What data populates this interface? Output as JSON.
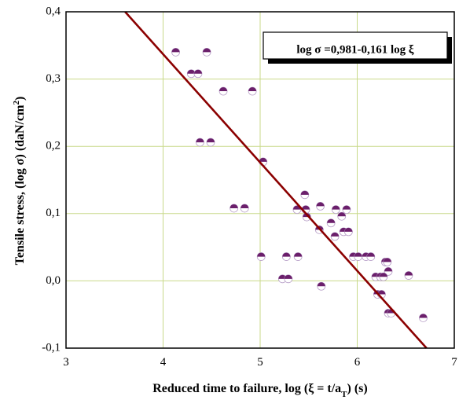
{
  "chart_data": {
    "type": "scatter",
    "xlabel": "Reduced time to failure,  log (ξ = t/a",
    "xlabel_sub": "T",
    "xlabel_end": ")  (s)",
    "ylabel": "Tensile stress,  (log  σ)   (daN/cm",
    "ylabel_sup": "2",
    "ylabel_end": ")",
    "xlim": [
      3,
      7
    ],
    "ylim": [
      -0.1,
      0.4
    ],
    "x_ticks": [
      3,
      4,
      5,
      6,
      7
    ],
    "y_ticks": [
      -0.1,
      0.0,
      0.1,
      0.2,
      0.3,
      0.4
    ],
    "x_tick_labels": [
      "3",
      "4",
      "5",
      "6",
      "7"
    ],
    "y_tick_labels": [
      "-0,1",
      "0,0",
      "0,1",
      "0,2",
      "0,3",
      "0,4"
    ],
    "grid": true,
    "annotation": "log σ =0,981-0,161 log ξ",
    "fit_line": {
      "intercept": 0.981,
      "slope": -0.161,
      "color": "#8B0000"
    },
    "marker_colors": {
      "top": "#6b1f6b",
      "bottom": "#ffffff"
    },
    "points": [
      {
        "x": 4.13,
        "y": 0.34
      },
      {
        "x": 4.45,
        "y": 0.34
      },
      {
        "x": 4.29,
        "y": 0.308
      },
      {
        "x": 4.36,
        "y": 0.308
      },
      {
        "x": 4.62,
        "y": 0.282
      },
      {
        "x": 4.92,
        "y": 0.282
      },
      {
        "x": 4.38,
        "y": 0.206
      },
      {
        "x": 4.49,
        "y": 0.206
      },
      {
        "x": 5.03,
        "y": 0.177
      },
      {
        "x": 5.46,
        "y": 0.128
      },
      {
        "x": 4.73,
        "y": 0.108
      },
      {
        "x": 4.84,
        "y": 0.108
      },
      {
        "x": 5.38,
        "y": 0.106
      },
      {
        "x": 5.47,
        "y": 0.106
      },
      {
        "x": 5.62,
        "y": 0.111
      },
      {
        "x": 5.78,
        "y": 0.106
      },
      {
        "x": 5.89,
        "y": 0.106
      },
      {
        "x": 5.48,
        "y": 0.095
      },
      {
        "x": 5.73,
        "y": 0.086
      },
      {
        "x": 5.84,
        "y": 0.096
      },
      {
        "x": 5.61,
        "y": 0.076
      },
      {
        "x": 5.86,
        "y": 0.073
      },
      {
        "x": 5.91,
        "y": 0.073
      },
      {
        "x": 5.77,
        "y": 0.066
      },
      {
        "x": 5.01,
        "y": 0.036
      },
      {
        "x": 5.27,
        "y": 0.036
      },
      {
        "x": 5.39,
        "y": 0.036
      },
      {
        "x": 5.96,
        "y": 0.036
      },
      {
        "x": 6.01,
        "y": 0.036
      },
      {
        "x": 6.09,
        "y": 0.036
      },
      {
        "x": 6.14,
        "y": 0.036
      },
      {
        "x": 6.29,
        "y": 0.028
      },
      {
        "x": 6.31,
        "y": 0.028
      },
      {
        "x": 6.32,
        "y": 0.014
      },
      {
        "x": 5.23,
        "y": 0.003
      },
      {
        "x": 5.29,
        "y": 0.003
      },
      {
        "x": 6.19,
        "y": 0.006
      },
      {
        "x": 6.24,
        "y": 0.006
      },
      {
        "x": 6.27,
        "y": 0.006
      },
      {
        "x": 6.53,
        "y": 0.008
      },
      {
        "x": 5.63,
        "y": -0.008
      },
      {
        "x": 6.21,
        "y": -0.02
      },
      {
        "x": 6.25,
        "y": -0.02
      },
      {
        "x": 6.32,
        "y": -0.048
      },
      {
        "x": 6.35,
        "y": -0.048
      },
      {
        "x": 6.68,
        "y": -0.055
      }
    ]
  }
}
